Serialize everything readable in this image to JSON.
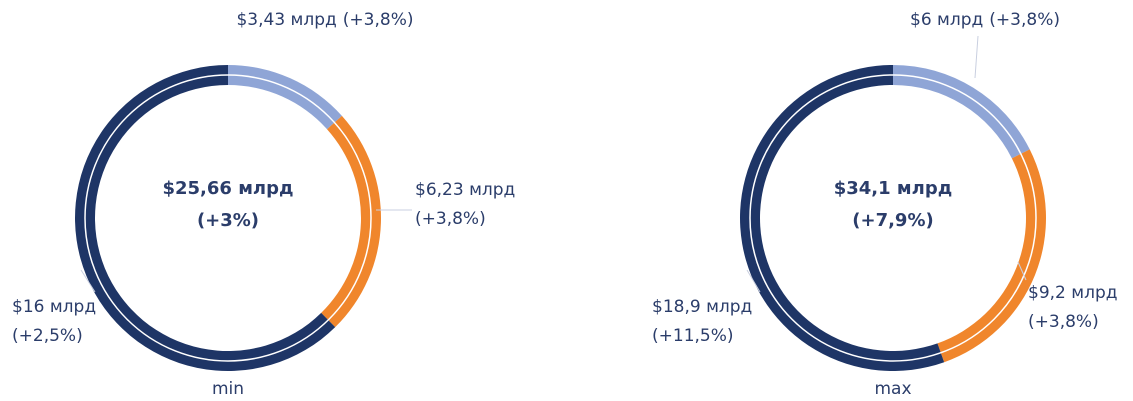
{
  "chart_data": [
    {
      "type": "pie",
      "title": "min",
      "total_label": "$25,66 млрд",
      "total_change": "(+3%)",
      "values": [
        3.43,
        6.23,
        16
      ],
      "value_labels": [
        "$3,43 млрд",
        "$6,23 млрд",
        "$16 млрд"
      ],
      "changes": [
        "(+3,8%)",
        "(+3,8%)",
        "(+2,5%)"
      ],
      "colors": [
        "#8fa5d6",
        "#f0862c",
        "#1e3566"
      ]
    },
    {
      "type": "pie",
      "title": "max",
      "total_label": "$34,1 млрд",
      "total_change": "(+7,9%)",
      "values": [
        6,
        9.2,
        18.9
      ],
      "value_labels": [
        "$6 млрд",
        "$9,2 млрд",
        "$18,9 млрд"
      ],
      "changes": [
        "(+3,8%)",
        "(+3,8%)",
        "(+11,5%)"
      ],
      "colors": [
        "#8fa5d6",
        "#f0862c",
        "#1e3566"
      ]
    }
  ]
}
